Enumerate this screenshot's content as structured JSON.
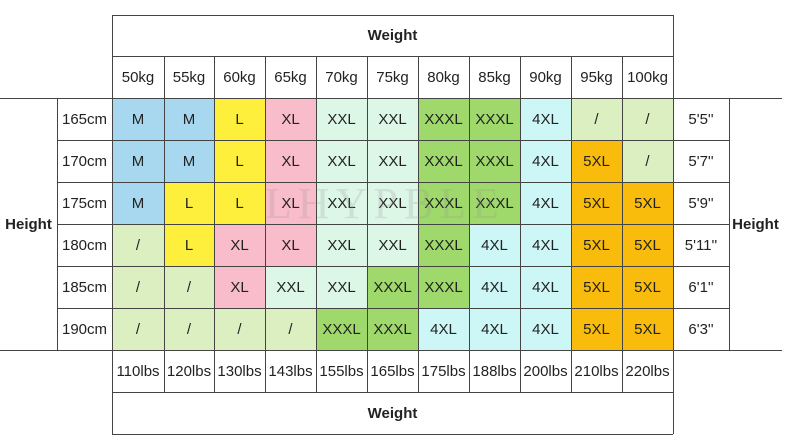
{
  "top_header": "Weight",
  "bottom_header": "Weight",
  "left_header": "Height",
  "right_header": "Height",
  "weights_kg": [
    "50kg",
    "55kg",
    "60kg",
    "65kg",
    "70kg",
    "75kg",
    "80kg",
    "85kg",
    "90kg",
    "95kg",
    "100kg"
  ],
  "weights_lbs": [
    "110lbs",
    "120lbs",
    "130lbs",
    "143lbs",
    "155lbs",
    "165lbs",
    "175lbs",
    "188lbs",
    "200lbs",
    "210lbs",
    "220lbs"
  ],
  "rows": [
    {
      "cm": "165cm",
      "ft": "5'5''",
      "sizes": [
        "M",
        "M",
        "L",
        "XL",
        "XXL",
        "XXL",
        "XXXL",
        "XXXL",
        "4XL",
        "/",
        "/"
      ]
    },
    {
      "cm": "170cm",
      "ft": "5'7''",
      "sizes": [
        "M",
        "M",
        "L",
        "XL",
        "XXL",
        "XXL",
        "XXXL",
        "XXXL",
        "4XL",
        "5XL",
        "/"
      ]
    },
    {
      "cm": "175cm",
      "ft": "5'9''",
      "sizes": [
        "M",
        "L",
        "L",
        "XL",
        "XXL",
        "XXL",
        "XXXL",
        "XXXL",
        "4XL",
        "5XL",
        "5XL"
      ]
    },
    {
      "cm": "180cm",
      "ft": "5'11''",
      "sizes": [
        "/",
        "L",
        "XL",
        "XL",
        "XXL",
        "XXL",
        "XXXL",
        "4XL",
        "4XL",
        "5XL",
        "5XL"
      ]
    },
    {
      "cm": "185cm",
      "ft": "6'1''",
      "sizes": [
        "/",
        "/",
        "XL",
        "XXL",
        "XXL",
        "XXXL",
        "XXXL",
        "4XL",
        "4XL",
        "5XL",
        "5XL"
      ]
    },
    {
      "cm": "190cm",
      "ft": "6'3''",
      "sizes": [
        "/",
        "/",
        "/",
        "/",
        "XXXL",
        "XXXL",
        "4XL",
        "4XL",
        "4XL",
        "5XL",
        "5XL"
      ]
    }
  ],
  "size_colors": {
    "M": "#a7d8ef",
    "L": "#ffef3d",
    "XL": "#f8bccb",
    "XXL": "#dcf7e6",
    "XXXL": "#9fd86b",
    "4XL": "#cdf7f7",
    "5XL": "#f9bc0d",
    "/": "#dcefc1"
  },
  "watermark": "LHYPBLE"
}
